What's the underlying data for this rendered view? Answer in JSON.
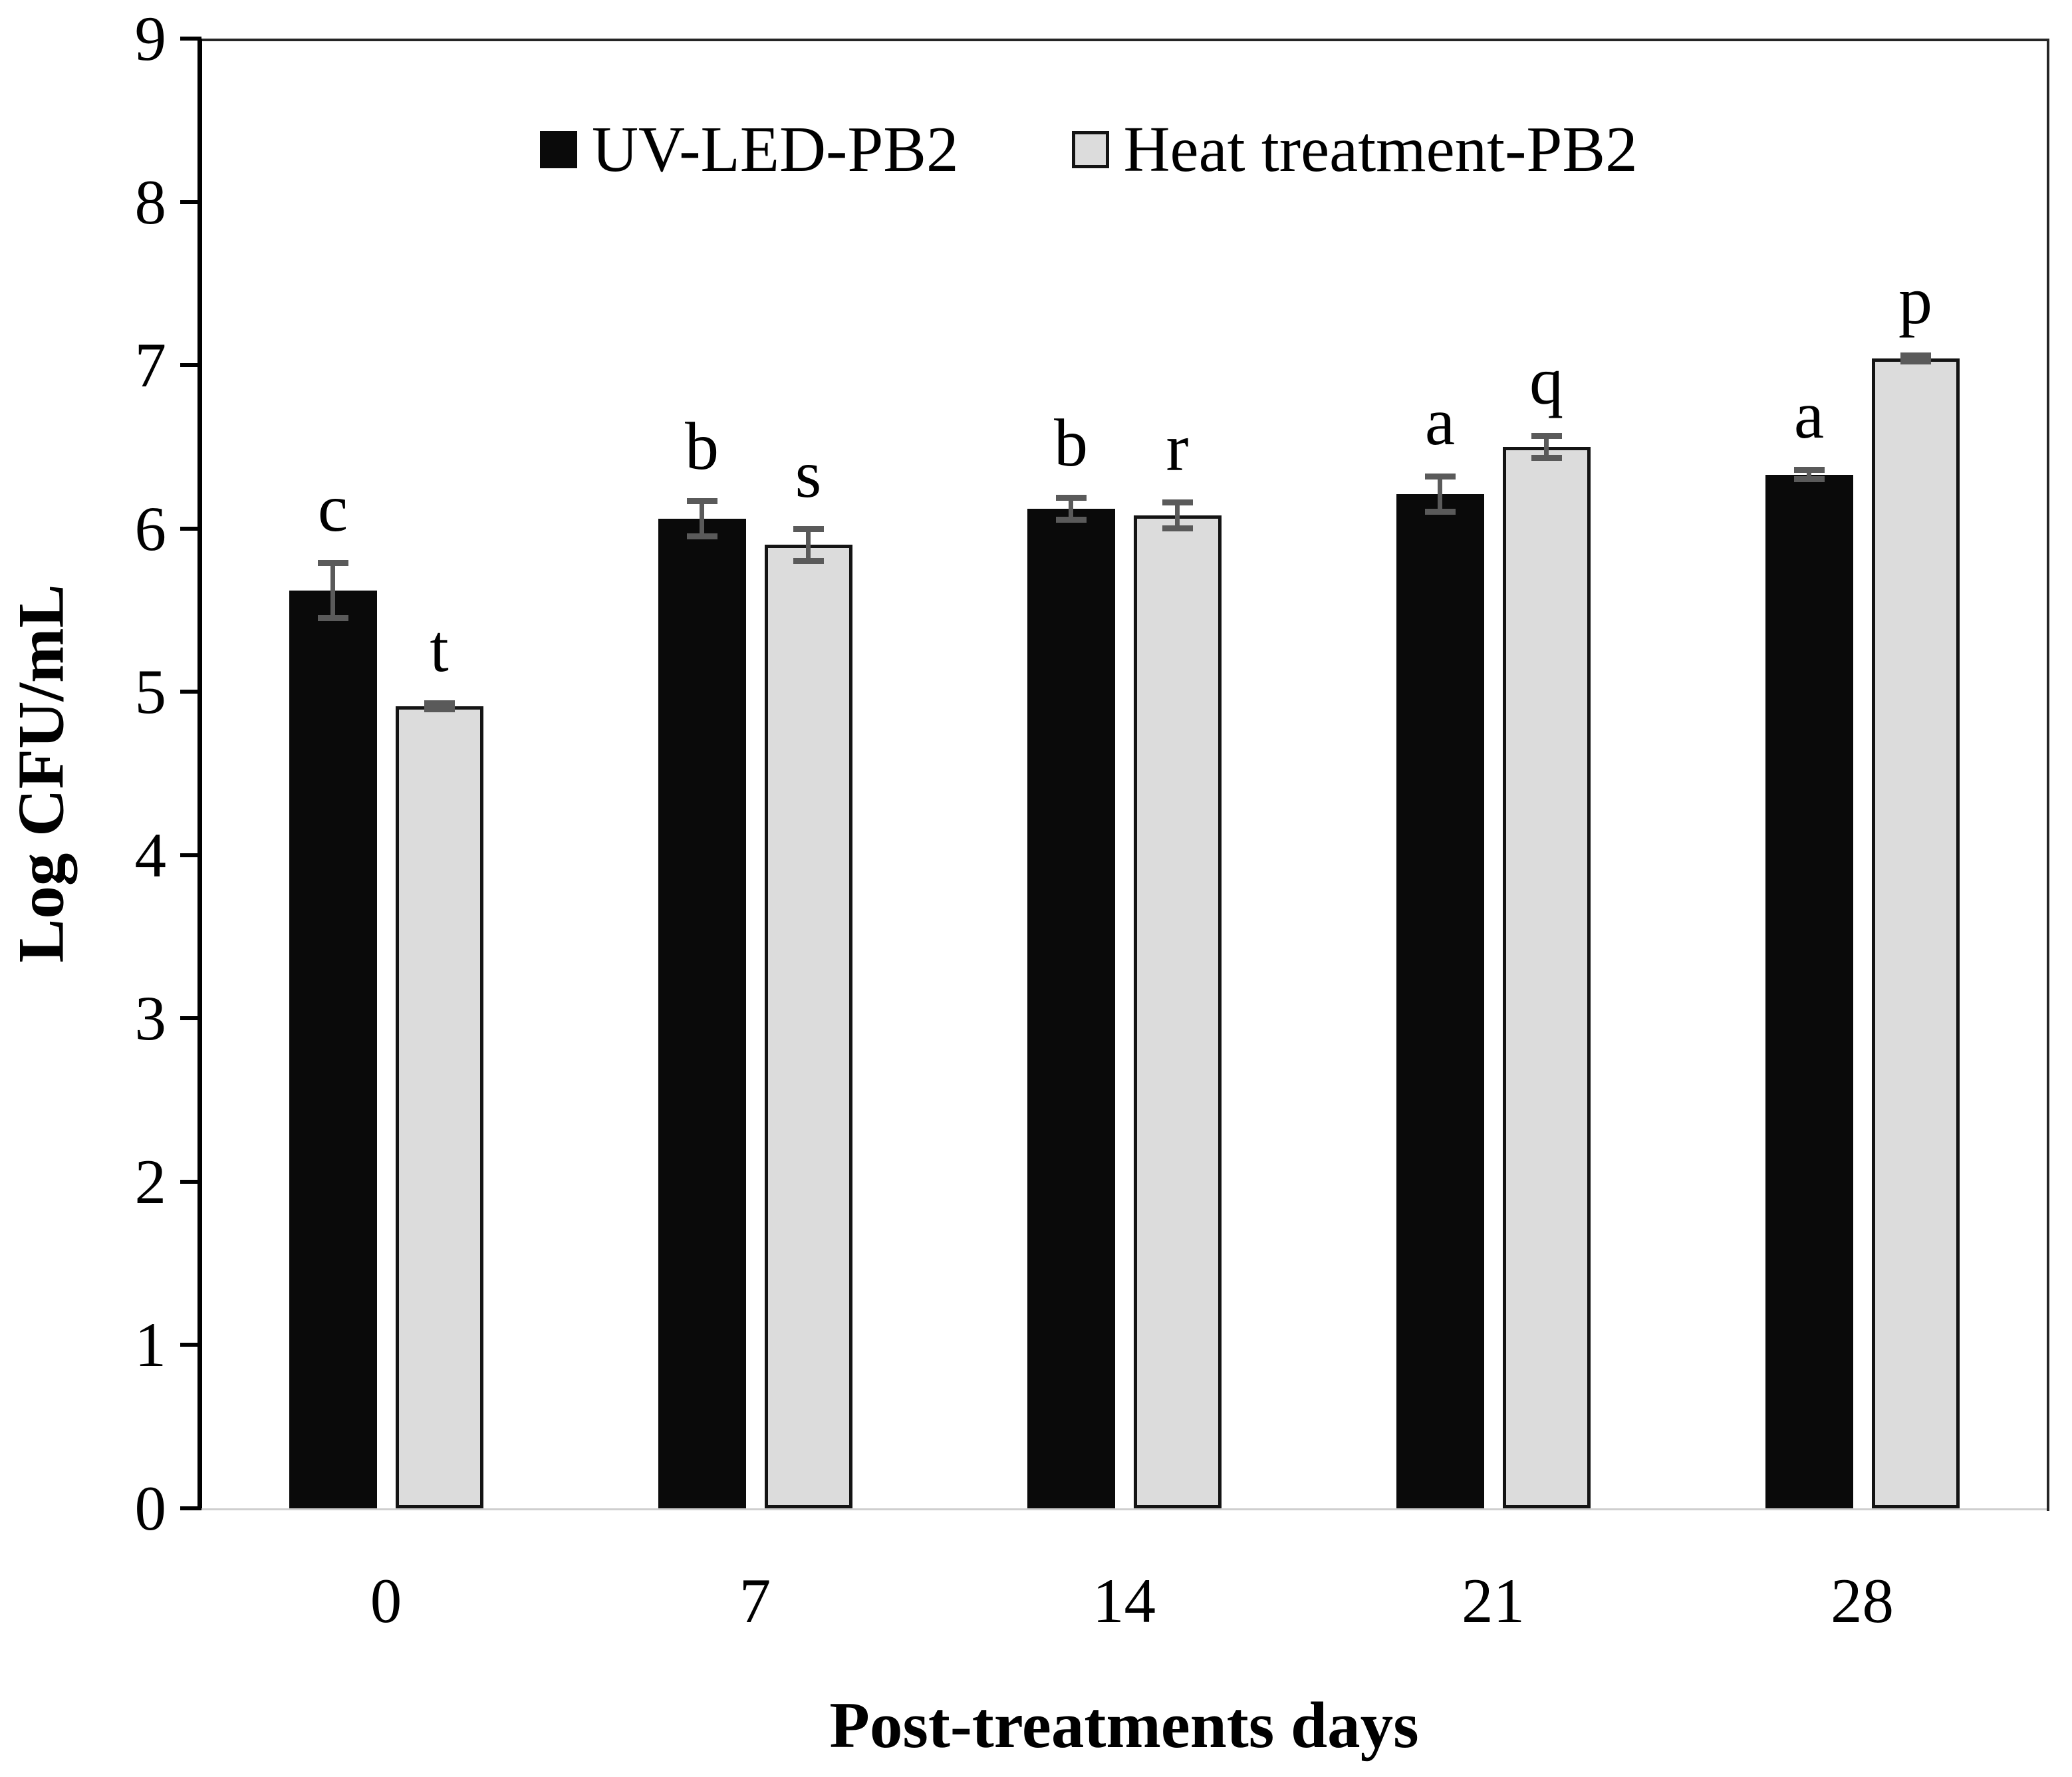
{
  "chart_data": {
    "type": "bar",
    "title": "",
    "xlabel": "Post-treatments days",
    "ylabel": "Log CFU/mL",
    "categories": [
      "0",
      "7",
      "14",
      "21",
      "28"
    ],
    "series": [
      {
        "name": "UV-LED-PB2",
        "fill": "#0a0a0a",
        "border": "#0a0a0a",
        "values": [
          5.62,
          6.06,
          6.12,
          6.21,
          6.33
        ],
        "errors": [
          0.17,
          0.11,
          0.07,
          0.11,
          0.03
        ],
        "sig_letters": [
          "c",
          "b",
          "b",
          "a",
          "a"
        ]
      },
      {
        "name": "Heat treatment-PB2",
        "fill": "#dcdcdc",
        "border": "#141414",
        "values": [
          4.91,
          5.9,
          6.08,
          6.5,
          7.04
        ],
        "errors": [
          0.02,
          0.1,
          0.08,
          0.07,
          0.02
        ],
        "sig_letters": [
          "t",
          "s",
          "r",
          "q",
          "p"
        ]
      }
    ],
    "ylim": [
      0,
      9
    ],
    "yticks": [
      0,
      1,
      2,
      3,
      4,
      5,
      6,
      7,
      8,
      9
    ],
    "error_bar_color": "#5a5a5a",
    "axis_color": "#000000",
    "frame_color": "#262626",
    "baseline_color": "#cfcfcf",
    "grid": false,
    "legend_position": "top-center"
  }
}
